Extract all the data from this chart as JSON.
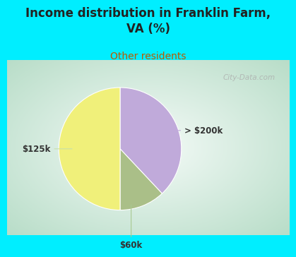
{
  "title": "Income distribution in Franklin Farm,\nVA (%)",
  "subtitle": "Other residents",
  "title_color": "#222222",
  "subtitle_color": "#b85c00",
  "bg_color": "#00eeff",
  "slices": [
    {
      "label": "$125k",
      "value": 50,
      "color": "#f0f07a"
    },
    {
      "label": "> $200k",
      "value": 38,
      "color": "#c0aada"
    },
    {
      "label": "$60k",
      "value": 12,
      "color": "#aabf88"
    }
  ],
  "watermark": "City-Data.com",
  "chart_bg_gradient": [
    "#b8ddc8",
    "#d8efe4",
    "#f0f8f4",
    "#ffffff",
    "#f0f8f4",
    "#d8efe4"
  ],
  "label_color": "#333333",
  "line_color_125k": "#d4e8a0",
  "line_color_200k": "#c0aada",
  "line_color_60k": "#a8c890"
}
